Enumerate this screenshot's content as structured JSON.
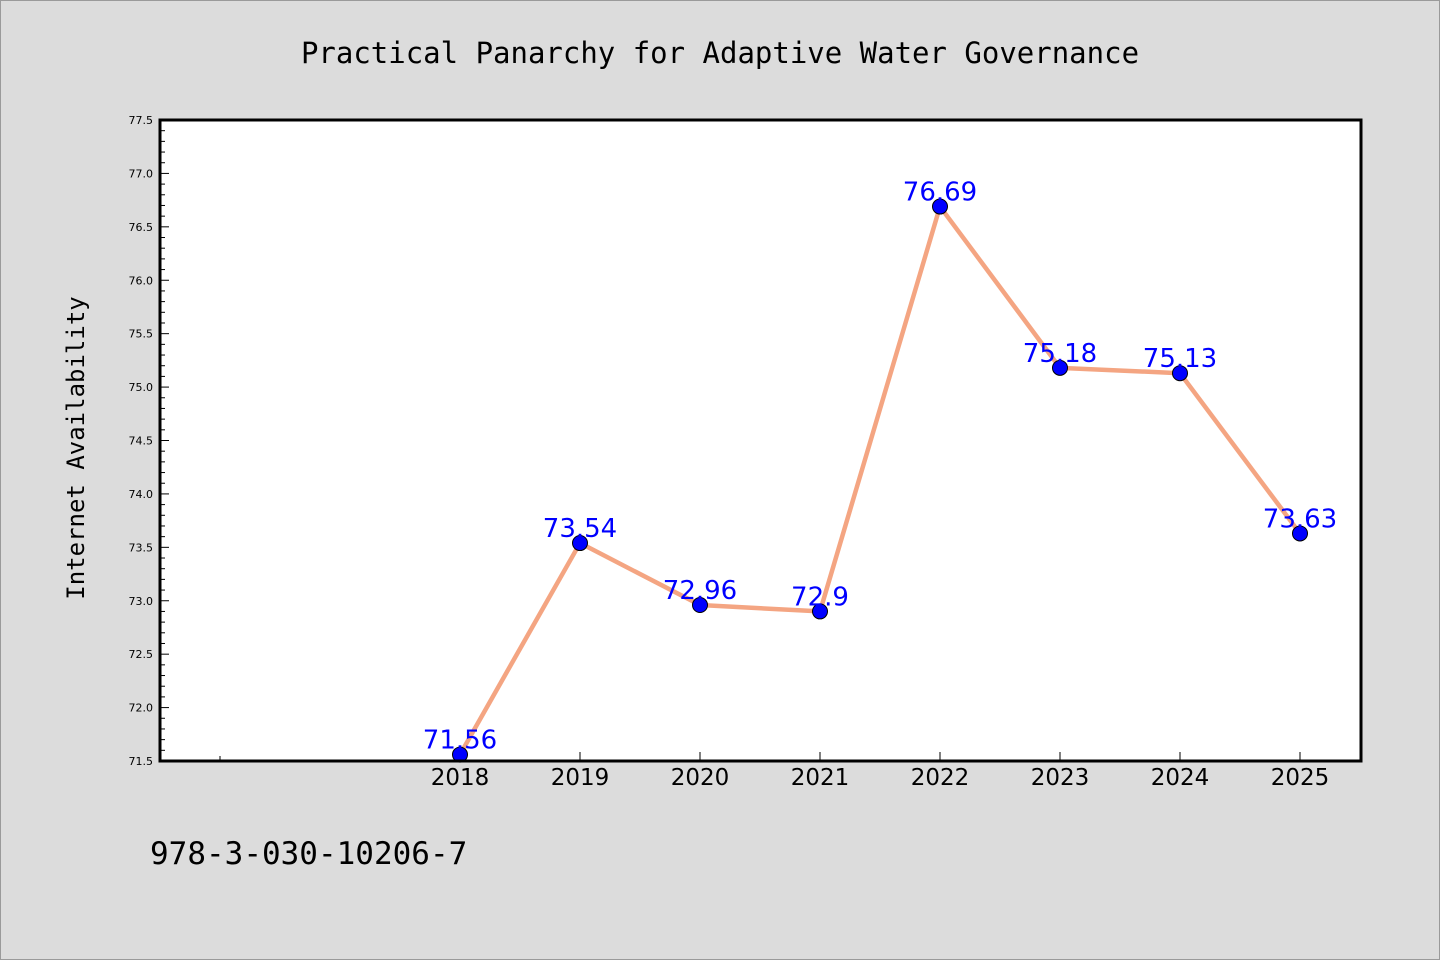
{
  "chart_data": {
    "type": "line",
    "title": "Practical Panarchy for Adaptive Water Governance",
    "xlabel": "",
    "ylabel": "Internet Availability",
    "categories": [
      "2018",
      "2019",
      "2020",
      "2021",
      "2022",
      "2023",
      "2024",
      "2025"
    ],
    "series": [
      {
        "values": [
          71.56,
          73.54,
          72.96,
          72.9,
          76.69,
          75.18,
          75.13,
          73.63
        ],
        "data_labels": [
          "71.56",
          "73.54",
          "72.96",
          "72.9",
          "76.69",
          "75.18",
          "75.13",
          "73.63"
        ]
      }
    ],
    "ylim": [
      71.5,
      77.5
    ],
    "yticks": [
      "71.5",
      "72.0",
      "72.5",
      "73.0",
      "73.5",
      "74.0",
      "74.5",
      "75.0",
      "75.5",
      "76.0",
      "76.5",
      "77.0",
      "77.5"
    ],
    "grid": false,
    "legend": "none",
    "colors": {
      "line": "#f4a582",
      "marker": "#0000ff",
      "data_label": "#0000ff",
      "plot_background": "#ffffff",
      "figure_background": "#dcdcdc"
    }
  },
  "footer": {
    "isbn": "978-3-030-10206-7"
  }
}
